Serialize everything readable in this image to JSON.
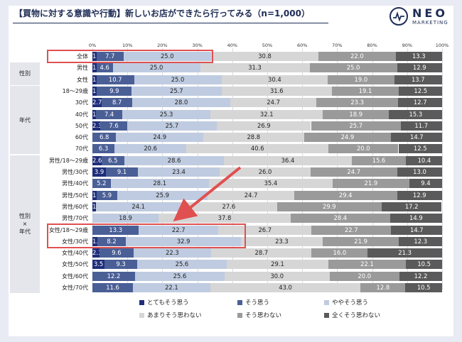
{
  "header": {
    "title": "【買物に対する意識や行動】新しいお店ができたら行ってみる（n=1,000）",
    "logo_main": "NEO",
    "logo_sub": "MARKETING"
  },
  "groups": [
    {
      "label": "性別",
      "rows": [
        1,
        2
      ]
    },
    {
      "label": "年代",
      "rows": [
        3,
        8
      ]
    },
    {
      "label": "性別\n×\n年代",
      "rows": [
        9,
        20
      ]
    }
  ],
  "colors": [
    "#1f2d7a",
    "#4a5f96",
    "#bfcbe0",
    "#d6d6d6",
    "#9a9a9a",
    "#5a5a5a"
  ],
  "highlight_rows": [
    0,
    15,
    16
  ],
  "chart_data": {
    "type": "bar",
    "orientation": "horizontal-stacked-100",
    "xlim": [
      0,
      100
    ],
    "x_ticks": [
      "0%",
      "10%",
      "20%",
      "30%",
      "40%",
      "50%",
      "60%",
      "70%",
      "80%",
      "90%",
      "100%"
    ],
    "categories": [
      "全体",
      "男性",
      "女性",
      "18～29歳",
      "30代",
      "40代",
      "50代",
      "60代",
      "70代",
      "男性/18～29歳",
      "男性/30代",
      "男性/40代",
      "男性/50代",
      "男性/60代",
      "男性/70代",
      "女性/18～29歳",
      "女性/30代",
      "女性/40代",
      "女性/50代",
      "女性/60代",
      "女性/70代"
    ],
    "series": [
      {
        "name": "とてもそう思う",
        "values": [
          1.2,
          1.2,
          1.2,
          1.3,
          2.7,
          1.1,
          2.3,
          0,
          0,
          2.6,
          3.9,
          0,
          1.2,
          1.1,
          0,
          0,
          1.4,
          2.1,
          3.5,
          0,
          0
        ]
      },
      {
        "name": "そう思う",
        "values": [
          7.7,
          4.6,
          10.7,
          9.9,
          8.7,
          7.4,
          7.6,
          6.8,
          6.3,
          6.5,
          9.1,
          5.2,
          5.9,
          0,
          0,
          13.3,
          8.2,
          9.6,
          9.3,
          12.2,
          11.6
        ]
      },
      {
        "name": "ややそう思う",
        "values": [
          25.0,
          25.0,
          25.0,
          25.7,
          28.0,
          25.3,
          25.7,
          24.9,
          20.6,
          28.6,
          23.4,
          28.1,
          25.9,
          24.1,
          18.9,
          22.7,
          32.9,
          22.3,
          25.6,
          25.6,
          22.1
        ]
      },
      {
        "name": "あまりそう思わない",
        "values": [
          30.8,
          31.3,
          30.4,
          31.6,
          24.7,
          32.1,
          26.9,
          28.8,
          40.6,
          36.4,
          26.0,
          35.4,
          24.7,
          27.6,
          37.8,
          26.7,
          23.3,
          28.7,
          29.1,
          30.0,
          43.0
        ]
      },
      {
        "name": "そう思わない",
        "values": [
          22.0,
          25.0,
          19.0,
          19.1,
          23.3,
          18.9,
          25.7,
          24.9,
          20.0,
          15.6,
          24.7,
          21.9,
          29.4,
          29.9,
          28.4,
          22.7,
          21.9,
          16.0,
          22.1,
          20.0,
          12.8
        ]
      },
      {
        "name": "全くそう思わない",
        "values": [
          13.3,
          12.9,
          13.7,
          12.5,
          12.7,
          15.3,
          11.7,
          14.7,
          12.5,
          10.4,
          13.0,
          9.4,
          12.9,
          17.2,
          14.9,
          14.7,
          12.3,
          21.3,
          10.5,
          12.2,
          10.5
        ]
      }
    ],
    "legend_position": "bottom"
  }
}
